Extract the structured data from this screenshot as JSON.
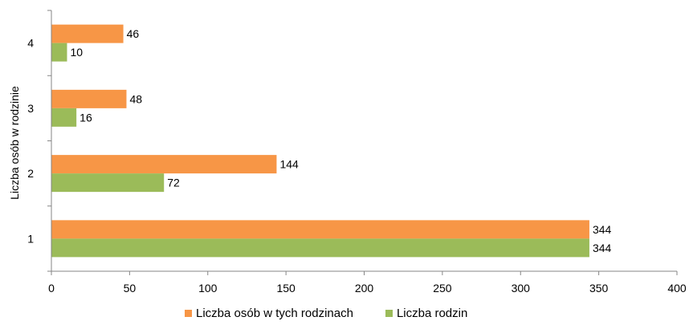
{
  "chart_data": {
    "type": "bar",
    "orientation": "horizontal",
    "categories": [
      "1",
      "2",
      "3",
      "4"
    ],
    "series": [
      {
        "name": "Liczba osób w  tych rodzinach",
        "values": [
          344,
          144,
          48,
          46
        ],
        "color": "#F79646"
      },
      {
        "name": "Liczba rodzin",
        "values": [
          344,
          72,
          16,
          10
        ],
        "color": "#9BBB59"
      }
    ],
    "ylabel": "Liczba osób w rodzinie",
    "xlabel": "",
    "xlim": [
      0,
      400
    ],
    "xticks": [
      0,
      50,
      100,
      150,
      200,
      250,
      300,
      350,
      400
    ],
    "grid": false,
    "legend": "bottom",
    "data_labels": true
  }
}
